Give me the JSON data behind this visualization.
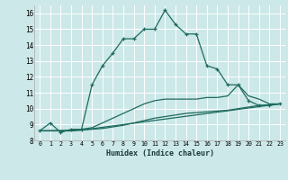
{
  "bg_color": "#cce8e8",
  "grid_color": "#ffffff",
  "line_color": "#1e6b5e",
  "x_label": "Humidex (Indice chaleur)",
  "xlim": [
    -0.5,
    23.5
  ],
  "ylim": [
    8,
    16.5
  ],
  "yticks": [
    8,
    9,
    10,
    11,
    12,
    13,
    14,
    15,
    16
  ],
  "xticks": [
    0,
    1,
    2,
    3,
    4,
    5,
    6,
    7,
    8,
    9,
    10,
    11,
    12,
    13,
    14,
    15,
    16,
    17,
    18,
    19,
    20,
    21,
    22,
    23
  ],
  "series_main": {
    "x": [
      0,
      1,
      2,
      3,
      4,
      5,
      6,
      7,
      8,
      9,
      10,
      11,
      12,
      13,
      14,
      15,
      16,
      17,
      18,
      19,
      20,
      21,
      22,
      23
    ],
    "y": [
      8.6,
      9.1,
      8.5,
      8.7,
      8.7,
      11.5,
      12.7,
      13.5,
      14.4,
      14.4,
      15.0,
      15.0,
      16.2,
      15.3,
      14.7,
      14.7,
      12.7,
      12.5,
      11.5,
      11.5,
      10.5,
      10.2,
      10.2,
      10.3
    ]
  },
  "series_upper": {
    "x": [
      0,
      1,
      2,
      3,
      4,
      5,
      6,
      7,
      8,
      9,
      10,
      11,
      12,
      13,
      14,
      15,
      16,
      17,
      18,
      19,
      20,
      21,
      22,
      23
    ],
    "y": [
      8.6,
      8.6,
      8.6,
      8.6,
      8.7,
      8.8,
      9.1,
      9.4,
      9.7,
      10.0,
      10.3,
      10.5,
      10.6,
      10.6,
      10.6,
      10.6,
      10.7,
      10.7,
      10.8,
      11.5,
      10.8,
      10.6,
      10.3,
      10.3
    ]
  },
  "series_lower": {
    "x": [
      0,
      1,
      2,
      3,
      4,
      5,
      6,
      7,
      8,
      9,
      10,
      11,
      12,
      13,
      14,
      15,
      16,
      17,
      18,
      19,
      20,
      21,
      22,
      23
    ],
    "y": [
      8.6,
      8.6,
      8.6,
      8.6,
      8.65,
      8.7,
      8.75,
      8.85,
      8.95,
      9.1,
      9.25,
      9.4,
      9.5,
      9.6,
      9.7,
      9.75,
      9.8,
      9.85,
      9.9,
      10.0,
      10.1,
      10.2,
      10.25,
      10.3
    ]
  },
  "series_base": {
    "x": [
      0,
      4,
      23
    ],
    "y": [
      8.6,
      8.65,
      10.3
    ]
  }
}
